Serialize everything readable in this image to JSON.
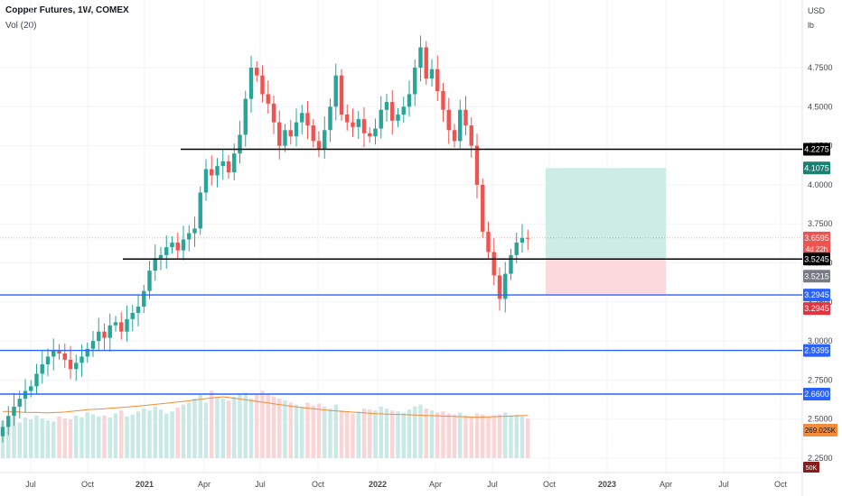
{
  "header": {
    "title": "Copper Futures, 1W, COMEX",
    "indicator": "Vol (20)"
  },
  "axis_units": {
    "currency": "USD",
    "unit": "lb"
  },
  "colors": {
    "up": "#26a69a",
    "down": "#ef5350",
    "black_level": "#000000",
    "blue_level": "#2962ff",
    "vol_ma": "#f28c38",
    "profit_zone": "#cdece6",
    "loss_zone": "#fbd9dd"
  },
  "chart_data": {
    "type": "candlestick",
    "title": "Copper Futures, 1W, COMEX",
    "x_ticks": [
      "Jul",
      "Oct",
      "2021",
      "Apr",
      "Jul",
      "Oct",
      "2022",
      "Apr",
      "Jul",
      "Oct",
      "2023",
      "Apr",
      "Jul",
      "Oct"
    ],
    "y_ticks": [
      "4.7500",
      "4.5000",
      "4.2500",
      "4.0000",
      "3.7500",
      "3.5000",
      "3.2500",
      "3.0000",
      "2.7500",
      "2.5000",
      "2.2500"
    ],
    "ylim": [
      2.18,
      5.1
    ],
    "series_close": [
      2.45,
      2.52,
      2.58,
      2.63,
      2.68,
      2.71,
      2.79,
      2.85,
      2.9,
      2.94,
      2.92,
      2.88,
      2.82,
      2.86,
      2.9,
      2.95,
      3.0,
      3.06,
      3.02,
      3.1,
      3.12,
      3.06,
      3.14,
      3.18,
      3.22,
      3.32,
      3.45,
      3.53,
      3.55,
      3.6,
      3.63,
      3.58,
      3.65,
      3.69,
      3.72,
      3.95,
      4.1,
      4.06,
      4.12,
      4.15,
      4.08,
      4.2,
      4.32,
      4.55,
      4.75,
      4.7,
      4.58,
      4.52,
      4.4,
      4.25,
      4.35,
      4.31,
      4.4,
      4.46,
      4.38,
      4.28,
      4.23,
      4.35,
      4.5,
      4.7,
      4.45,
      4.4,
      4.37,
      4.42,
      4.33,
      4.31,
      4.36,
      4.48,
      4.53,
      4.41,
      4.45,
      4.5,
      4.58,
      4.75,
      4.88,
      4.68,
      4.74,
      4.6,
      4.48,
      4.35,
      4.28,
      4.48,
      4.38,
      4.25,
      4.0,
      3.7,
      3.57,
      3.42,
      3.27,
      3.43,
      3.55,
      3.63,
      3.66,
      3.6595
    ],
    "volume": [
      380,
      400,
      420,
      360,
      410,
      390,
      430,
      400,
      380,
      370,
      420,
      400,
      390,
      430,
      410,
      460,
      440,
      420,
      430,
      410,
      450,
      480,
      420,
      440,
      470,
      500,
      480,
      520,
      490,
      450,
      470,
      510,
      540,
      560,
      600,
      640,
      560,
      680,
      620,
      600,
      580,
      620,
      640,
      660,
      600,
      640,
      680,
      650,
      620,
      600,
      580,
      560,
      540,
      520,
      560,
      530,
      550,
      520,
      500,
      540,
      480,
      460,
      450,
      470,
      500,
      490,
      480,
      520,
      500,
      480,
      470,
      460,
      490,
      520,
      540,
      500,
      480,
      460,
      470,
      450,
      440,
      460,
      430,
      420,
      450,
      440,
      420,
      430,
      440,
      460,
      430,
      440,
      420,
      400
    ],
    "volume_ma": [
      470,
      470,
      468,
      465,
      462,
      460,
      462,
      458,
      455,
      460,
      462,
      465,
      470,
      476,
      482,
      488,
      492,
      495,
      498,
      502,
      506,
      510,
      515,
      520,
      525,
      530,
      536,
      542,
      548,
      554,
      560,
      566,
      572,
      578,
      586,
      594,
      600,
      606,
      612,
      618,
      612,
      604,
      596,
      588,
      580,
      572,
      564,
      556,
      548,
      540,
      532,
      524,
      516,
      510,
      504,
      498,
      492,
      486,
      480,
      476,
      472,
      468,
      464,
      460,
      456,
      452,
      448,
      446,
      444,
      442,
      440,
      438,
      436,
      434,
      432,
      430,
      428,
      426,
      424,
      422,
      420,
      418,
      416,
      414,
      412,
      414,
      416,
      418,
      420,
      422,
      424,
      426,
      428,
      430
    ],
    "levels": [
      4.2275,
      3.5245,
      3.2945,
      2.9395,
      2.66
    ],
    "level_tags": [
      "4.2275",
      "3.5245",
      "3.2945",
      "2.9395",
      "2.6600"
    ],
    "position": {
      "entry": 3.5245,
      "target": 4.1075,
      "stop": 3.2945,
      "target_tag": "4.1075",
      "stop_tag": "3.2945"
    },
    "last_price": 3.6595,
    "last_price_tag": "3.6595",
    "countdown": "4d 22h",
    "prev_close_tag": "3.5215",
    "volume_tag": "269.025K",
    "volume_floor_tag": "50K"
  }
}
